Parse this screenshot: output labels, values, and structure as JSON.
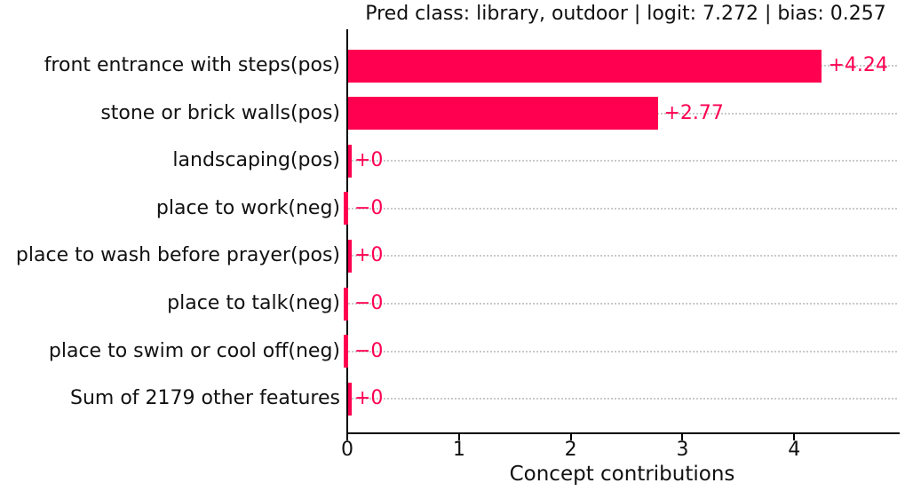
{
  "chart_data": {
    "type": "bar",
    "orientation": "horizontal",
    "title": "Pred class: library, outdoor | logit: 7.272 | bias: 0.257",
    "xlabel": "Concept contributions",
    "categories": [
      "front entrance with steps(pos)",
      "stone or brick walls(pos)",
      "landscaping(pos)",
      "place to work(neg)",
      "place to wash before prayer(pos)",
      "place to talk(neg)",
      "place to swim or cool off(neg)",
      "Sum of 2179 other features"
    ],
    "values": [
      4.24,
      2.77,
      0,
      0,
      0,
      0,
      0,
      0
    ],
    "value_labels": [
      "+4.24",
      "+2.77",
      "+0",
      "−0",
      "+0",
      "−0",
      "−0",
      "+0"
    ],
    "xticks": [
      0,
      1,
      2,
      3,
      4
    ],
    "xlim": [
      0,
      4.92
    ],
    "grid": "row-dotted",
    "legend": "none",
    "bar_color": "#ff0051",
    "value_label_color": "#ff0051",
    "grid_color": "#c9c9c9",
    "axis_color": "#000000",
    "text_color": "#111111"
  }
}
